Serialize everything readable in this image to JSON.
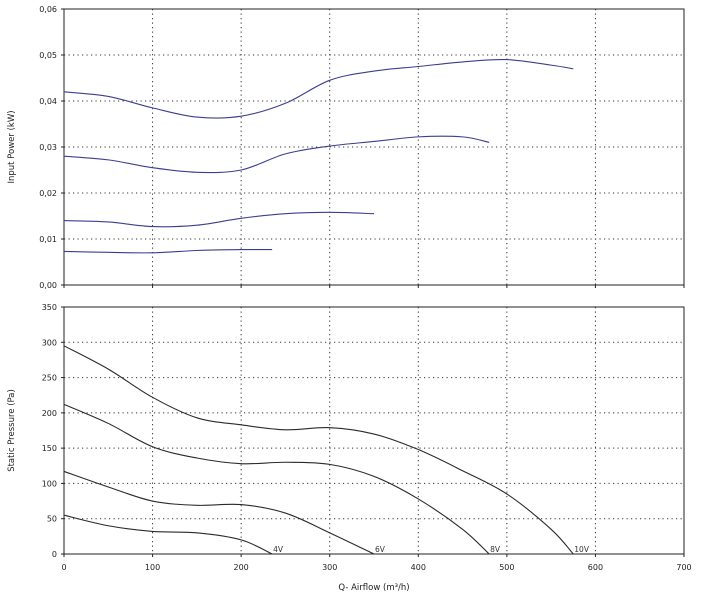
{
  "chart_data": [
    {
      "type": "line",
      "ylabel": "Input Power (kW)",
      "xlim": [
        0,
        700
      ],
      "ylim": [
        0,
        0.06
      ],
      "x_ticks": [
        "0",
        "100",
        "200",
        "300",
        "400",
        "500",
        "600",
        "700"
      ],
      "y_ticks": [
        "0,00",
        "0,01",
        "0,02",
        "0,03",
        "0,04",
        "0,05",
        "0,06"
      ],
      "grid": true,
      "color": "#3d3d8f",
      "series": [
        {
          "x": [
            0,
            50,
            100,
            150,
            200,
            250,
            300,
            350,
            400,
            450,
            500,
            550,
            575
          ],
          "y": [
            0.042,
            0.041,
            0.0385,
            0.0365,
            0.0367,
            0.0395,
            0.0445,
            0.0465,
            0.0475,
            0.0485,
            0.049,
            0.0478,
            0.047
          ]
        },
        {
          "x": [
            0,
            50,
            100,
            150,
            200,
            250,
            300,
            350,
            400,
            450,
            480
          ],
          "y": [
            0.028,
            0.0272,
            0.0255,
            0.0245,
            0.025,
            0.0285,
            0.0302,
            0.0312,
            0.0322,
            0.0322,
            0.031
          ]
        },
        {
          "x": [
            0,
            50,
            100,
            150,
            200,
            250,
            300,
            350
          ],
          "y": [
            0.014,
            0.0137,
            0.0127,
            0.013,
            0.0145,
            0.0155,
            0.0158,
            0.0155
          ]
        },
        {
          "x": [
            0,
            50,
            100,
            150,
            200,
            235
          ],
          "y": [
            0.0073,
            0.0071,
            0.007,
            0.0075,
            0.0077,
            0.0077
          ]
        }
      ]
    },
    {
      "type": "line",
      "xlabel": "Q- Airflow (m³/h)",
      "ylabel": "Static Pressure (Pa)",
      "xlim": [
        0,
        700
      ],
      "ylim": [
        0,
        350
      ],
      "x_ticks": [
        "0",
        "100",
        "200",
        "300",
        "400",
        "500",
        "600",
        "700"
      ],
      "y_ticks": [
        "0",
        "50",
        "100",
        "150",
        "200",
        "250",
        "300",
        "350"
      ],
      "grid": true,
      "color": "#2a2a2a",
      "series": [
        {
          "label": "10V",
          "x": [
            0,
            50,
            100,
            150,
            200,
            250,
            300,
            350,
            400,
            450,
            500,
            550,
            575
          ],
          "y": [
            295,
            262,
            222,
            193,
            183,
            176,
            179,
            170,
            148,
            118,
            85,
            35,
            0
          ]
        },
        {
          "label": "8V",
          "x": [
            0,
            50,
            100,
            150,
            200,
            250,
            300,
            350,
            400,
            450,
            480
          ],
          "y": [
            212,
            185,
            152,
            136,
            128,
            130,
            127,
            110,
            78,
            35,
            0
          ]
        },
        {
          "label": "6V",
          "x": [
            0,
            50,
            100,
            150,
            200,
            250,
            300,
            350
          ],
          "y": [
            117,
            95,
            75,
            69,
            70,
            58,
            30,
            0
          ]
        },
        {
          "label": "4V",
          "x": [
            0,
            50,
            100,
            150,
            200,
            235
          ],
          "y": [
            55,
            40,
            32,
            30,
            20,
            0
          ]
        }
      ]
    }
  ]
}
